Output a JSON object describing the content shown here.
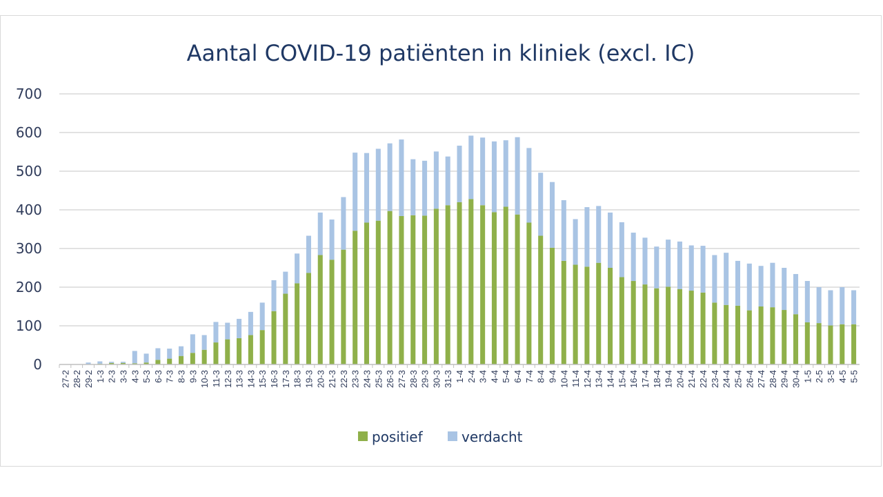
{
  "chart_data": {
    "type": "bar",
    "stacked": true,
    "title": "Aantal COVID-19 patiënten in kliniek (excl. IC)",
    "xlabel": "",
    "ylabel": "",
    "ylim": [
      0,
      700
    ],
    "yticks": [
      0,
      100,
      200,
      300,
      400,
      500,
      600,
      700
    ],
    "grid": true,
    "legend_position": "bottom",
    "categories": [
      "27-2",
      "28-2",
      "29-2",
      "1-3",
      "2-3",
      "3-3",
      "4-3",
      "5-3",
      "6-3",
      "7-3",
      "8-3",
      "9-3",
      "10-3",
      "11-3",
      "12-3",
      "13-3",
      "14-3",
      "15-3",
      "16-3",
      "17-3",
      "18-3",
      "19-3",
      "20-3",
      "21-3",
      "22-3",
      "23-3",
      "24-3",
      "25-3",
      "26-3",
      "27-3",
      "28-3",
      "29-3",
      "30-3",
      "31-3",
      "1-4",
      "2-4",
      "3-4",
      "4-4",
      "5-4",
      "6-4",
      "7-4",
      "8-4",
      "9-4",
      "10-4",
      "11-4",
      "12-4",
      "13-4",
      "14-4",
      "15-4",
      "16-4",
      "17-4",
      "18-4",
      "19-4",
      "20-4",
      "21-4",
      "22-4",
      "23-4",
      "24-4",
      "25-4",
      "26-4",
      "27-4",
      "28-4",
      "29-4",
      "30-4",
      "1-5",
      "2-5",
      "3-5",
      "4-5",
      "5-5"
    ],
    "series": [
      {
        "name": "positief",
        "color": "#8fb04a",
        "values": [
          0,
          0,
          1,
          2,
          4,
          4,
          3,
          5,
          12,
          15,
          22,
          30,
          38,
          57,
          65,
          68,
          76,
          89,
          138,
          183,
          210,
          237,
          283,
          271,
          297,
          346,
          367,
          372,
          397,
          384,
          386,
          385,
          403,
          412,
          420,
          428,
          412,
          394,
          408,
          388,
          367,
          333,
          302,
          268,
          258,
          253,
          263,
          250,
          226,
          216,
          207,
          197,
          201,
          195,
          191,
          186,
          160,
          154,
          152,
          140,
          150,
          148,
          141,
          130,
          109,
          107,
          101,
          104,
          104
        ]
      },
      {
        "name": "verdacht",
        "color": "#a9c4e4",
        "values": [
          0,
          0,
          4,
          6,
          3,
          3,
          32,
          23,
          30,
          26,
          25,
          48,
          38,
          53,
          43,
          50,
          60,
          71,
          80,
          57,
          77,
          96,
          110,
          104,
          136,
          202,
          180,
          186,
          175,
          198,
          145,
          142,
          148,
          126,
          146,
          164,
          175,
          183,
          172,
          200,
          193,
          163,
          170,
          157,
          118,
          154,
          147,
          143,
          142,
          125,
          121,
          108,
          122,
          123,
          117,
          121,
          123,
          135,
          116,
          121,
          105,
          115,
          109,
          104,
          107,
          93,
          91,
          96,
          88
        ]
      }
    ]
  }
}
